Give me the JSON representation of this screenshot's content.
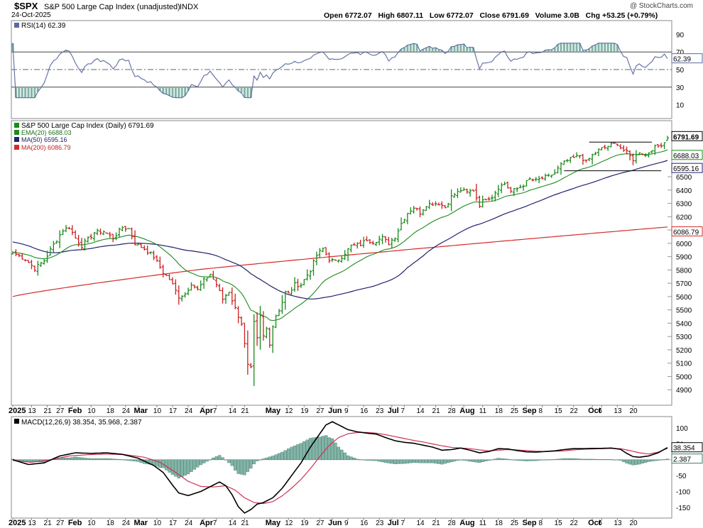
{
  "header": {
    "ticker": "$SPX",
    "name": "S&P 500 Large Cap Index (unadjusted)",
    "exchange": "INDX",
    "date": "24-Oct-2025",
    "watermark": "@ StockCharts.com",
    "ohlc_line": "Open 6772.07   High 6807.11   Low 6772.07   Close 6791.69   Volume 3.0B   Chg +53.25 (+0.79%)"
  },
  "colors": {
    "up": "#1a8a1a",
    "down": "#cc1f1f",
    "ema20": "#1b8c1b",
    "ma50": "#22226e",
    "ma200": "#d42a2a",
    "rsi": "#5a6aa0",
    "macd": "#000000",
    "signal": "#cc3355",
    "histogram": "#84b4a8",
    "histogram_edge": "#3e7a6a"
  },
  "chart_data": [
    {
      "type": "line",
      "title": "RSI(14) 62.39",
      "series": [
        {
          "name": "RSI(14)",
          "last": 62.39
        }
      ],
      "ylim": [
        0,
        100
      ],
      "yticks": [
        10,
        30,
        50,
        70,
        90
      ],
      "reference_lines": [
        30,
        50,
        70
      ],
      "last_label": "62.39",
      "shade_above": 70,
      "shade_below": 30
    },
    {
      "type": "candlestick",
      "title": "S&P 500 Large Cap Index (Daily) 6791.69",
      "yticks": [
        4900,
        5000,
        5100,
        5200,
        5300,
        5400,
        5500,
        5600,
        5700,
        5800,
        5900,
        6000,
        6100,
        6200,
        6300,
        6400,
        6500
      ],
      "ylim": [
        4800,
        6900
      ],
      "series": [
        {
          "name": "EMA(20) 6688.03",
          "last": 6688.03,
          "label": "6688.03"
        },
        {
          "name": "MA(50) 6595.16",
          "last": 6595.16,
          "label": "6595.16"
        },
        {
          "name": "MA(200) 6086.79",
          "last": 6086.79,
          "label": "6086.79"
        }
      ],
      "last_close_label": "6791.69",
      "anchors": [
        [
          0,
          5930
        ],
        [
          4,
          5880
        ],
        [
          7,
          5810
        ],
        [
          10,
          5870
        ],
        [
          13,
          5990
        ],
        [
          16,
          6100
        ],
        [
          18,
          6120
        ],
        [
          20,
          6040
        ],
        [
          22,
          5980
        ],
        [
          26,
          6080
        ],
        [
          29,
          6090
        ],
        [
          32,
          6040
        ],
        [
          35,
          6120
        ],
        [
          37,
          6110
        ],
        [
          39,
          6000
        ],
        [
          42,
          5960
        ],
        [
          45,
          5900
        ],
        [
          48,
          5780
        ],
        [
          50,
          5730
        ],
        [
          53,
          5600
        ],
        [
          55,
          5620
        ],
        [
          57,
          5700
        ],
        [
          59,
          5650
        ],
        [
          61,
          5720
        ],
        [
          63,
          5770
        ],
        [
          65,
          5690
        ],
        [
          67,
          5580
        ],
        [
          69,
          5640
        ],
        [
          71,
          5510
        ],
        [
          73,
          5400
        ],
        [
          75,
          5080
        ],
        [
          76,
          5060
        ],
        [
          77,
          5400
        ],
        [
          78,
          5280
        ],
        [
          79,
          5450
        ],
        [
          80,
          5300
        ],
        [
          81,
          5360
        ],
        [
          82,
          5250
        ],
        [
          83,
          5380
        ],
        [
          84,
          5460
        ],
        [
          85,
          5500
        ],
        [
          86,
          5560
        ],
        [
          87,
          5630
        ],
        [
          88,
          5620
        ],
        [
          90,
          5690
        ],
        [
          92,
          5690
        ],
        [
          95,
          5800
        ],
        [
          97,
          5910
        ],
        [
          99,
          5960
        ],
        [
          101,
          5880
        ],
        [
          103,
          5860
        ],
        [
          105,
          5900
        ],
        [
          108,
          5980
        ],
        [
          111,
          5990
        ],
        [
          113,
          6030
        ],
        [
          115,
          6010
        ],
        [
          118,
          6040
        ],
        [
          120,
          6000
        ],
        [
          122,
          6050
        ],
        [
          124,
          6150
        ],
        [
          126,
          6230
        ],
        [
          128,
          6270
        ],
        [
          130,
          6230
        ],
        [
          132,
          6290
        ],
        [
          134,
          6300
        ],
        [
          136,
          6300
        ],
        [
          138,
          6270
        ],
        [
          140,
          6350
        ],
        [
          143,
          6400
        ],
        [
          145,
          6380
        ],
        [
          147,
          6400
        ],
        [
          149,
          6290
        ],
        [
          151,
          6340
        ],
        [
          153,
          6350
        ],
        [
          155,
          6420
        ],
        [
          157,
          6450
        ],
        [
          159,
          6390
        ],
        [
          161,
          6410
        ],
        [
          163,
          6440
        ],
        [
          165,
          6480
        ],
        [
          167,
          6470
        ],
        [
          169,
          6490
        ],
        [
          171,
          6500
        ],
        [
          173,
          6530
        ],
        [
          175,
          6590
        ],
        [
          177,
          6620
        ],
        [
          179,
          6640
        ],
        [
          181,
          6660
        ],
        [
          183,
          6610
        ],
        [
          185,
          6660
        ],
        [
          187,
          6700
        ],
        [
          189,
          6720
        ],
        [
          191,
          6740
        ],
        [
          193,
          6750
        ],
        [
          194,
          6720
        ],
        [
          196,
          6680
        ],
        [
          198,
          6630
        ],
        [
          200,
          6690
        ],
        [
          202,
          6660
        ],
        [
          204,
          6710
        ],
        [
          206,
          6730
        ],
        [
          208,
          6760
        ],
        [
          209,
          6791.69
        ]
      ]
    },
    {
      "type": "line",
      "title": "MACD(12,26,9) 38.354, 35.968, 2.387",
      "series": [
        {
          "name": "MACD(12,26,9)",
          "last": 38.354,
          "label": "38.354"
        },
        {
          "name": "signal",
          "last": 35.968
        },
        {
          "name": "histogram",
          "last": 2.387,
          "label": "2.387"
        }
      ],
      "yticks": [
        100,
        50,
        -50,
        -100,
        -150
      ],
      "ylim": [
        -175,
        125
      ],
      "macd_anchors": [
        [
          0,
          0
        ],
        [
          5,
          -15
        ],
        [
          10,
          -10
        ],
        [
          15,
          12
        ],
        [
          20,
          22
        ],
        [
          25,
          20
        ],
        [
          30,
          22
        ],
        [
          35,
          17
        ],
        [
          40,
          5
        ],
        [
          45,
          -18
        ],
        [
          48,
          -40
        ],
        [
          51,
          -80
        ],
        [
          53,
          -105
        ],
        [
          56,
          -113
        ],
        [
          60,
          -100
        ],
        [
          63,
          -85
        ],
        [
          66,
          -70
        ],
        [
          68,
          -82
        ],
        [
          70,
          -110
        ],
        [
          72,
          -148
        ],
        [
          74,
          -168
        ],
        [
          76,
          -157
        ],
        [
          78,
          -140
        ],
        [
          80,
          -135
        ],
        [
          83,
          -120
        ],
        [
          86,
          -90
        ],
        [
          89,
          -50
        ],
        [
          92,
          -10
        ],
        [
          95,
          40
        ],
        [
          98,
          82
        ],
        [
          100,
          110
        ],
        [
          102,
          120
        ],
        [
          104,
          110
        ],
        [
          107,
          95
        ],
        [
          110,
          88
        ],
        [
          113,
          84
        ],
        [
          116,
          81
        ],
        [
          119,
          70
        ],
        [
          122,
          60
        ],
        [
          125,
          55
        ],
        [
          128,
          52
        ],
        [
          131,
          46
        ],
        [
          134,
          40
        ],
        [
          137,
          30
        ],
        [
          140,
          32
        ],
        [
          143,
          37
        ],
        [
          146,
          30
        ],
        [
          149,
          22
        ],
        [
          152,
          26
        ],
        [
          155,
          35
        ],
        [
          158,
          34
        ],
        [
          161,
          29
        ],
        [
          164,
          25
        ],
        [
          167,
          24
        ],
        [
          170,
          26
        ],
        [
          173,
          28
        ],
        [
          176,
          32
        ],
        [
          179,
          35
        ],
        [
          182,
          35
        ],
        [
          185,
          36
        ],
        [
          188,
          36
        ],
        [
          191,
          37
        ],
        [
          194,
          33
        ],
        [
          196,
          20
        ],
        [
          198,
          10
        ],
        [
          200,
          8
        ],
        [
          203,
          12
        ],
        [
          206,
          22
        ],
        [
          209,
          38.354
        ]
      ],
      "signal_anchors": [
        [
          0,
          -2
        ],
        [
          6,
          -8
        ],
        [
          12,
          0
        ],
        [
          18,
          12
        ],
        [
          24,
          16
        ],
        [
          30,
          18
        ],
        [
          36,
          16
        ],
        [
          42,
          8
        ],
        [
          47,
          -8
        ],
        [
          52,
          -40
        ],
        [
          56,
          -68
        ],
        [
          60,
          -84
        ],
        [
          64,
          -86
        ],
        [
          68,
          -82
        ],
        [
          71,
          -96
        ],
        [
          74,
          -120
        ],
        [
          77,
          -135
        ],
        [
          80,
          -138
        ],
        [
          83,
          -132
        ],
        [
          86,
          -114
        ],
        [
          89,
          -90
        ],
        [
          92,
          -62
        ],
        [
          95,
          -28
        ],
        [
          98,
          10
        ],
        [
          101,
          45
        ],
        [
          104,
          70
        ],
        [
          107,
          82
        ],
        [
          110,
          86
        ],
        [
          113,
          86
        ],
        [
          116,
          84
        ],
        [
          119,
          79
        ],
        [
          122,
          73
        ],
        [
          125,
          67
        ],
        [
          128,
          61
        ],
        [
          131,
          56
        ],
        [
          134,
          50
        ],
        [
          137,
          44
        ],
        [
          140,
          39
        ],
        [
          143,
          37
        ],
        [
          146,
          35
        ],
        [
          149,
          31
        ],
        [
          152,
          28
        ],
        [
          155,
          30
        ],
        [
          158,
          32
        ],
        [
          161,
          31
        ],
        [
          164,
          29
        ],
        [
          167,
          27
        ],
        [
          170,
          26
        ],
        [
          173,
          27
        ],
        [
          176,
          28
        ],
        [
          179,
          31
        ],
        [
          182,
          33
        ],
        [
          185,
          34
        ],
        [
          188,
          35
        ],
        [
          191,
          36
        ],
        [
          194,
          35
        ],
        [
          197,
          29
        ],
        [
          200,
          22
        ],
        [
          203,
          18
        ],
        [
          206,
          24
        ],
        [
          209,
          35.968
        ]
      ]
    }
  ],
  "x_axis_top": [
    {
      "label": "2025",
      "bold": true,
      "i": 0
    },
    {
      "label": "13",
      "i": 6
    },
    {
      "label": "21",
      "i": 11
    },
    {
      "label": "27",
      "i": 15
    },
    {
      "label": "Feb",
      "bold": true,
      "i": 19
    },
    {
      "label": "10",
      "i": 25
    },
    {
      "label": "18",
      "i": 31
    },
    {
      "label": "24",
      "i": 36
    },
    {
      "label": "Mar",
      "bold": true,
      "i": 40
    },
    {
      "label": "10",
      "i": 46
    },
    {
      "label": "17",
      "i": 51
    },
    {
      "label": "24",
      "i": 56
    },
    {
      "label": "Apr",
      "bold": true,
      "i": 61
    },
    {
      "label": "7",
      "i": 65
    },
    {
      "label": "14",
      "i": 70
    },
    {
      "label": "21",
      "i": 74
    },
    {
      "label": "May",
      "bold": true,
      "i": 82
    },
    {
      "label": "12",
      "i": 88
    },
    {
      "label": "19",
      "i": 93
    },
    {
      "label": "27",
      "i": 98
    },
    {
      "label": "Jun",
      "bold": true,
      "i": 102
    },
    {
      "label": "9",
      "i": 107
    },
    {
      "label": "16",
      "i": 112
    },
    {
      "label": "23",
      "i": 117
    },
    {
      "label": "Jul",
      "bold": true,
      "i": 121
    },
    {
      "label": "7",
      "i": 125
    },
    {
      "label": "14",
      "i": 130
    },
    {
      "label": "21",
      "i": 135
    },
    {
      "label": "28",
      "i": 140
    },
    {
      "label": "Aug",
      "bold": true,
      "i": 144
    },
    {
      "label": "11",
      "i": 150
    },
    {
      "label": "18",
      "i": 155
    },
    {
      "label": "25",
      "i": 160
    },
    {
      "label": "Sep",
      "bold": true,
      "i": 164
    },
    {
      "label": "8",
      "i": 169
    },
    {
      "label": "15",
      "i": 174
    },
    {
      "label": "22",
      "i": 179
    },
    {
      "label": "Oct",
      "bold": true,
      "i": 185
    },
    {
      "label": "6",
      "i": 188
    },
    {
      "label": "13",
      "i": 193
    },
    {
      "label": "20",
      "i": 198
    }
  ],
  "x_axis_bottom": [
    {
      "label": "2025",
      "bold": true,
      "i": 0
    },
    {
      "label": "13",
      "i": 6
    },
    {
      "label": "21",
      "i": 11
    },
    {
      "label": "27",
      "i": 15
    },
    {
      "label": "Feb",
      "bold": true,
      "i": 19
    },
    {
      "label": "10",
      "i": 25
    },
    {
      "label": "18",
      "i": 31
    },
    {
      "label": "24",
      "i": 36
    },
    {
      "label": "Mar",
      "bold": true,
      "i": 40
    },
    {
      "label": "10",
      "i": 46
    },
    {
      "label": "17",
      "i": 51
    },
    {
      "label": "24",
      "i": 56
    },
    {
      "label": "Apr",
      "bold": true,
      "i": 61
    },
    {
      "label": "7",
      "i": 65
    },
    {
      "label": "14",
      "i": 70
    },
    {
      "label": "21",
      "i": 74
    },
    {
      "label": "May",
      "bold": true,
      "i": 82
    },
    {
      "label": "12",
      "i": 88
    },
    {
      "label": "19",
      "i": 93
    },
    {
      "label": "27",
      "i": 98
    },
    {
      "label": "Jun",
      "bold": true,
      "i": 102
    },
    {
      "label": "9",
      "i": 107
    },
    {
      "label": "16",
      "i": 112
    },
    {
      "label": "23",
      "i": 117
    },
    {
      "label": "Jul",
      "bold": true,
      "i": 121
    },
    {
      "label": "7",
      "i": 125
    },
    {
      "label": "14",
      "i": 130
    },
    {
      "label": "21",
      "i": 135
    },
    {
      "label": "28",
      "i": 140
    },
    {
      "label": "Aug",
      "bold": true,
      "i": 144
    },
    {
      "label": "11",
      "i": 150
    },
    {
      "label": "18",
      "i": 155
    },
    {
      "label": "25",
      "i": 160
    },
    {
      "label": "Sep",
      "bold": true,
      "i": 164
    },
    {
      "label": "8",
      "i": 169
    },
    {
      "label": "15",
      "i": 174
    },
    {
      "label": "22",
      "i": 179
    },
    {
      "label": "Oct",
      "bold": true,
      "i": 185
    },
    {
      "label": "6",
      "i": 188
    },
    {
      "label": "13",
      "i": 193
    },
    {
      "label": "20",
      "i": 198
    }
  ]
}
